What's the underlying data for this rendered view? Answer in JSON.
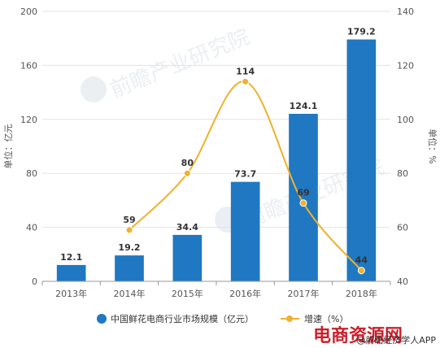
{
  "chart_data": {
    "type": "bar",
    "categories": [
      "2013年",
      "2014年",
      "2015年",
      "2016年",
      "2017年",
      "2018年"
    ],
    "series": [
      {
        "name": "中国鲜花电商行业市场规模（亿元）",
        "type": "bar",
        "axis": "left",
        "values": [
          12.1,
          19.2,
          34.4,
          73.7,
          124.1,
          179.2
        ],
        "color": "#1f78c1",
        "labels": [
          "12.1",
          "19.2",
          "34.4",
          "73.7",
          "124.1",
          "179.2"
        ]
      },
      {
        "name": "增速（%）",
        "type": "line",
        "axis": "right",
        "values": [
          null,
          59,
          80,
          114,
          69,
          44
        ],
        "color": "#f0b12c",
        "labels": [
          "",
          "59",
          "80",
          "114",
          "69",
          "44"
        ]
      }
    ],
    "y_left": {
      "label": "单位：亿元",
      "ylim": [
        0,
        200
      ],
      "ticks": [
        "0",
        "40",
        "80",
        "120",
        "160",
        "200"
      ]
    },
    "y_right": {
      "label": "单位：%",
      "ylim": [
        40,
        140
      ],
      "ticks": [
        "40",
        "60",
        "80",
        "100",
        "120",
        "140"
      ]
    },
    "grid": true,
    "legend_position": "bottom"
  },
  "footer": {
    "source": "@前瞻经济学人APP",
    "stamp": "电商资源网"
  }
}
